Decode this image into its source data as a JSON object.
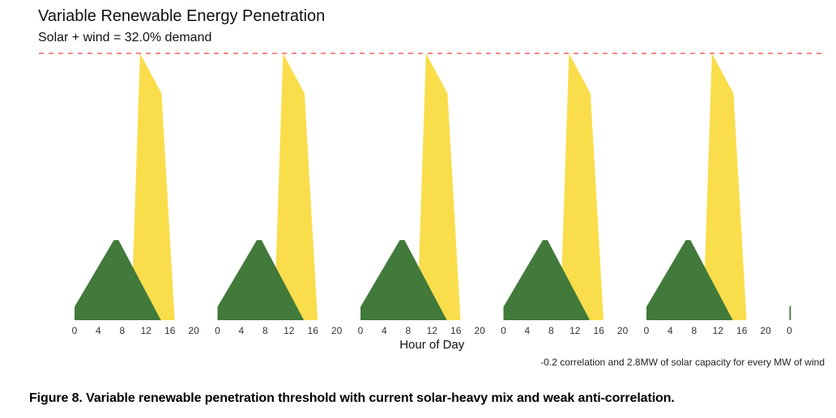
{
  "chart_data": {
    "type": "area",
    "title": "Variable Renewable Energy Penetration",
    "subtitle": "Solar + wind = 32.0% demand",
    "xlabel": "Hour of Day",
    "ylabel": "",
    "days": 5,
    "tick_labels": [
      "0",
      "4",
      "8",
      "12",
      "16",
      "20",
      "0",
      "4",
      "8",
      "12",
      "16",
      "20",
      "0",
      "4",
      "8",
      "12",
      "16",
      "20",
      "0",
      "4",
      "8",
      "12",
      "16",
      "20",
      "0",
      "4",
      "8",
      "12",
      "16",
      "20",
      "0"
    ],
    "ylim": [
      0,
      1.0
    ],
    "threshold": {
      "value": 1.0,
      "style": "dashed",
      "color": "#e8453c"
    },
    "series": [
      {
        "name": "Solar",
        "color": "#fadd4b",
        "points": [
          [
            9.5,
            0
          ],
          [
            11,
            1.0
          ],
          [
            14.6,
            0.85
          ],
          [
            16.8,
            0
          ]
        ]
      },
      {
        "name": "Wind",
        "color": "#417a3b",
        "points": [
          [
            0,
            0.05
          ],
          [
            6.6,
            0.3
          ],
          [
            7.4,
            0.3
          ],
          [
            14.5,
            0
          ]
        ]
      }
    ],
    "annotation": "-0.2 correlation and 2.8MW of solar capacity for every MW of wind"
  },
  "caption": "Figure 8. Variable renewable penetration threshold with current solar-heavy mix and weak anti-correlation."
}
